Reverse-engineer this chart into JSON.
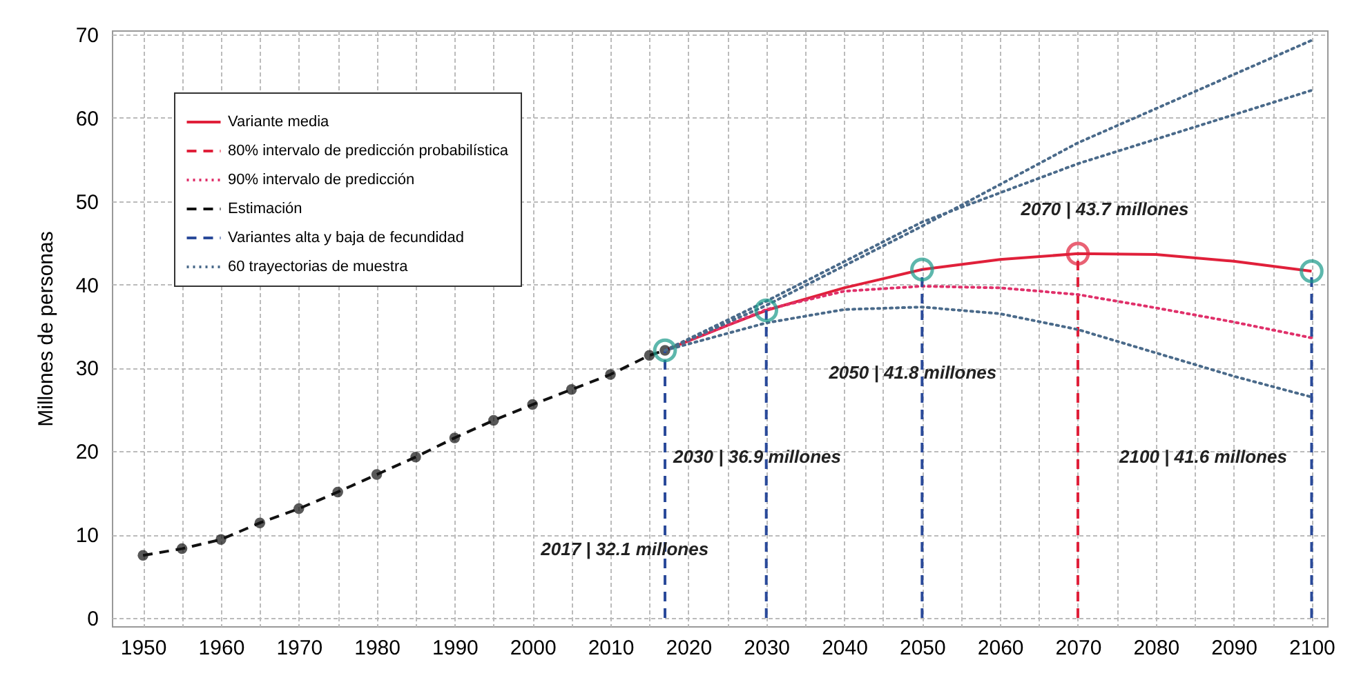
{
  "chart_data": {
    "type": "line",
    "ylabel": "Millones de personas",
    "xlim": [
      1946,
      2102
    ],
    "ylim": [
      -1,
      70.5
    ],
    "xticks": [
      1950,
      {
        "value": 1955,
        "label": null
      },
      1960,
      {
        "value": 1965,
        "label": null
      },
      1970,
      {
        "value": 1975,
        "label": null
      },
      1980,
      {
        "value": 1985,
        "label": null
      },
      1990,
      {
        "value": 1995,
        "label": null
      },
      2000,
      {
        "value": 2005,
        "label": null
      },
      2010,
      {
        "value": 2015,
        "label": null
      },
      2020,
      {
        "value": 2025,
        "label": null
      },
      2030,
      {
        "value": 2035,
        "label": null
      },
      2040,
      {
        "value": 2045,
        "label": null
      },
      2050,
      {
        "value": 2055,
        "label": null
      },
      2060,
      {
        "value": 2065,
        "label": null
      },
      2070,
      {
        "value": 2075,
        "label": null
      },
      2080,
      {
        "value": 2085,
        "label": null
      },
      2090,
      {
        "value": 2095,
        "label": null
      },
      2100
    ],
    "yticks": [
      0,
      10,
      20,
      30,
      40,
      50,
      60,
      70
    ],
    "grid": true,
    "legend": "top left",
    "series": [
      {
        "name": "Variante media",
        "color": "#e0203a",
        "line_style": "solid",
        "x": [
          2017,
          2025,
          2030,
          2040,
          2050,
          2060,
          2070,
          2080,
          2090,
          2100
        ],
        "values": [
          32.1,
          35.1,
          36.9,
          39.6,
          41.8,
          43.0,
          43.7,
          43.6,
          42.8,
          41.6
        ]
      },
      {
        "name": "80% intervalo de predicción probabilística",
        "color": "#e0203a",
        "line_style": "dashed",
        "x": [
          2070,
          2070
        ],
        "values": [
          0,
          43.7
        ]
      },
      {
        "name": "90% intervalo de predicción",
        "color": "#e0306a",
        "line_style": "dotted",
        "x": [
          2017,
          2030,
          2040,
          2050,
          2060,
          2070,
          2080,
          2090,
          2100
        ],
        "values": [
          32.1,
          37.0,
          39.2,
          39.8,
          39.6,
          38.8,
          37.2,
          35.5,
          33.6
        ]
      },
      {
        "name": "Estimación",
        "color": "#111111",
        "line_style": "dashed",
        "marker": "circle",
        "x": [
          1950,
          1955,
          1960,
          1965,
          1970,
          1975,
          1980,
          1985,
          1990,
          1995,
          2000,
          2005,
          2010,
          2015,
          2017
        ],
        "values": [
          7.5,
          8.3,
          9.4,
          11.4,
          13.1,
          15.1,
          17.2,
          19.3,
          21.6,
          23.7,
          25.6,
          27.4,
          29.2,
          31.5,
          32.1
        ]
      },
      {
        "name": "Variantes alta y baja de fecundidad",
        "color": "#2a4a9a",
        "line_style": "dashed",
        "x": [
          2017,
          2017,
          null,
          2030,
          2030,
          null,
          2050,
          2050,
          null,
          2100,
          2100
        ],
        "values": [
          0,
          32.1,
          null,
          0,
          36.9,
          null,
          0,
          41.8,
          null,
          0,
          41.6
        ]
      },
      {
        "name": "60 trayectorias de muestra",
        "color": "#4a6a8a",
        "line_style": "dotted",
        "x": [
          2017,
          2030,
          2050,
          2070,
          2100,
          null,
          2017,
          2030,
          2050,
          2070,
          2100,
          null,
          2017,
          2030,
          2040,
          2050,
          2060,
          2070,
          2080,
          2090,
          2100
        ],
        "values": [
          32.1,
          37.5,
          47.0,
          57.0,
          69.3,
          null,
          32.1,
          38.0,
          47.5,
          54.5,
          63.3,
          null,
          32.1,
          35.4,
          37.0,
          37.3,
          36.5,
          34.6,
          31.8,
          29.0,
          26.5
        ]
      },
      {
        "type": "scatter",
        "marker": "circle",
        "x": [
          2017,
          2030,
          2050,
          2070,
          2100
        ],
        "values": [
          32.1,
          36.9,
          41.8,
          43.7,
          41.6
        ],
        "colors": [
          "#1a9a8a",
          "#1a9a8a",
          "#1a9a8a",
          "#e0203a",
          "#1a9a8a"
        ]
      }
    ],
    "annotations": [
      "2017 | 32.1 millones",
      "2030 | 36.9 millones",
      "2050 | 41.8 millones",
      "2070 | 43.7 millones",
      "2100 | 41.6 millones"
    ]
  }
}
